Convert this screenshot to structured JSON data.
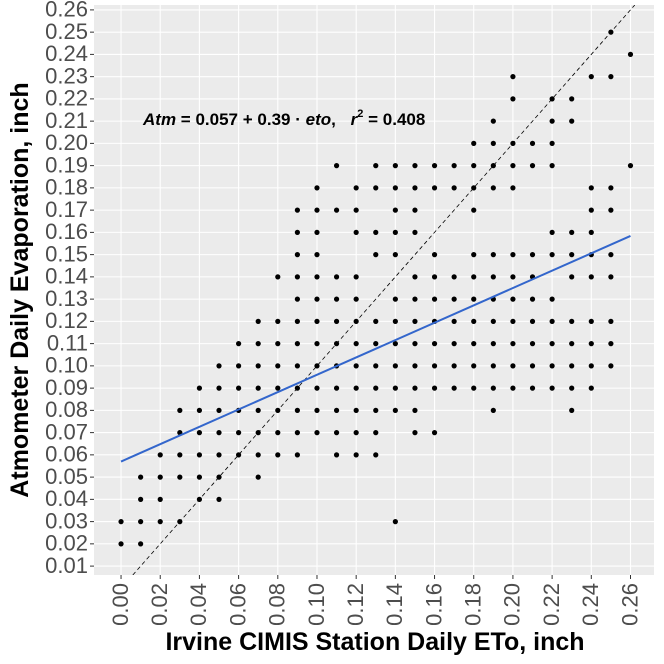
{
  "chart_data": {
    "type": "scatter",
    "xlabel": "Irvine CIMIS Station Daily ETo, inch",
    "ylabel": "Atmometer Daily Evaporation, inch",
    "x": [
      0.0,
      0.0,
      0.01,
      0.01,
      0.01,
      0.01,
      0.02,
      0.02,
      0.02,
      0.02,
      0.03,
      0.03,
      0.03,
      0.03,
      0.03,
      0.04,
      0.04,
      0.04,
      0.04,
      0.04,
      0.04,
      0.05,
      0.05,
      0.05,
      0.05,
      0.05,
      0.05,
      0.05,
      0.06,
      0.06,
      0.06,
      0.06,
      0.06,
      0.06,
      0.07,
      0.07,
      0.07,
      0.07,
      0.07,
      0.07,
      0.07,
      0.07,
      0.08,
      0.08,
      0.08,
      0.08,
      0.08,
      0.08,
      0.08,
      0.08,
      0.09,
      0.09,
      0.09,
      0.09,
      0.09,
      0.09,
      0.09,
      0.09,
      0.09,
      0.09,
      0.09,
      0.09,
      0.1,
      0.1,
      0.1,
      0.1,
      0.1,
      0.1,
      0.1,
      0.1,
      0.1,
      0.1,
      0.1,
      0.1,
      0.11,
      0.11,
      0.11,
      0.11,
      0.11,
      0.11,
      0.11,
      0.11,
      0.11,
      0.11,
      0.11,
      0.12,
      0.12,
      0.12,
      0.12,
      0.12,
      0.12,
      0.12,
      0.12,
      0.12,
      0.12,
      0.12,
      0.12,
      0.13,
      0.13,
      0.13,
      0.13,
      0.13,
      0.13,
      0.13,
      0.13,
      0.13,
      0.13,
      0.13,
      0.14,
      0.14,
      0.14,
      0.14,
      0.14,
      0.14,
      0.14,
      0.14,
      0.14,
      0.14,
      0.14,
      0.14,
      0.15,
      0.15,
      0.15,
      0.15,
      0.15,
      0.15,
      0.15,
      0.15,
      0.15,
      0.15,
      0.15,
      0.15,
      0.16,
      0.16,
      0.16,
      0.16,
      0.16,
      0.16,
      0.16,
      0.16,
      0.16,
      0.16,
      0.17,
      0.17,
      0.17,
      0.17,
      0.17,
      0.17,
      0.17,
      0.17,
      0.18,
      0.18,
      0.18,
      0.18,
      0.18,
      0.18,
      0.18,
      0.18,
      0.18,
      0.18,
      0.18,
      0.19,
      0.19,
      0.19,
      0.19,
      0.19,
      0.19,
      0.19,
      0.19,
      0.19,
      0.19,
      0.19,
      0.19,
      0.2,
      0.2,
      0.2,
      0.2,
      0.2,
      0.2,
      0.2,
      0.2,
      0.2,
      0.2,
      0.2,
      0.2,
      0.21,
      0.21,
      0.21,
      0.21,
      0.21,
      0.21,
      0.21,
      0.21,
      0.21,
      0.22,
      0.22,
      0.22,
      0.22,
      0.22,
      0.22,
      0.22,
      0.22,
      0.22,
      0.22,
      0.22,
      0.23,
      0.23,
      0.23,
      0.23,
      0.23,
      0.23,
      0.23,
      0.23,
      0.23,
      0.23,
      0.24,
      0.24,
      0.24,
      0.24,
      0.24,
      0.24,
      0.24,
      0.24,
      0.24,
      0.24,
      0.25,
      0.25,
      0.25,
      0.25,
      0.25,
      0.25,
      0.25,
      0.25,
      0.25,
      0.26,
      0.26
    ],
    "values": [
      0.02,
      0.03,
      0.02,
      0.03,
      0.04,
      0.05,
      0.03,
      0.04,
      0.05,
      0.06,
      0.03,
      0.05,
      0.06,
      0.07,
      0.08,
      0.04,
      0.05,
      0.06,
      0.07,
      0.08,
      0.09,
      0.04,
      0.05,
      0.06,
      0.07,
      0.08,
      0.09,
      0.1,
      0.06,
      0.07,
      0.08,
      0.09,
      0.1,
      0.11,
      0.05,
      0.06,
      0.07,
      0.08,
      0.09,
      0.1,
      0.11,
      0.12,
      0.06,
      0.07,
      0.08,
      0.09,
      0.1,
      0.11,
      0.12,
      0.14,
      0.06,
      0.07,
      0.08,
      0.09,
      0.1,
      0.11,
      0.12,
      0.13,
      0.14,
      0.15,
      0.16,
      0.17,
      0.07,
      0.08,
      0.09,
      0.1,
      0.11,
      0.12,
      0.13,
      0.14,
      0.15,
      0.16,
      0.17,
      0.18,
      0.06,
      0.07,
      0.08,
      0.09,
      0.1,
      0.11,
      0.12,
      0.13,
      0.14,
      0.17,
      0.19,
      0.06,
      0.07,
      0.08,
      0.09,
      0.1,
      0.11,
      0.12,
      0.13,
      0.14,
      0.16,
      0.17,
      0.18,
      0.06,
      0.07,
      0.08,
      0.09,
      0.1,
      0.11,
      0.12,
      0.15,
      0.16,
      0.18,
      0.19,
      0.03,
      0.08,
      0.09,
      0.1,
      0.11,
      0.12,
      0.13,
      0.15,
      0.16,
      0.17,
      0.18,
      0.19,
      0.07,
      0.08,
      0.09,
      0.1,
      0.11,
      0.12,
      0.13,
      0.14,
      0.16,
      0.17,
      0.18,
      0.19,
      0.07,
      0.09,
      0.1,
      0.11,
      0.12,
      0.13,
      0.14,
      0.15,
      0.18,
      0.19,
      0.09,
      0.1,
      0.11,
      0.12,
      0.13,
      0.14,
      0.18,
      0.19,
      0.09,
      0.1,
      0.11,
      0.12,
      0.13,
      0.14,
      0.15,
      0.17,
      0.18,
      0.19,
      0.2,
      0.08,
      0.09,
      0.1,
      0.11,
      0.12,
      0.13,
      0.14,
      0.15,
      0.18,
      0.19,
      0.2,
      0.21,
      0.09,
      0.1,
      0.11,
      0.12,
      0.13,
      0.14,
      0.15,
      0.18,
      0.19,
      0.2,
      0.22,
      0.23,
      0.09,
      0.1,
      0.11,
      0.12,
      0.13,
      0.14,
      0.15,
      0.19,
      0.2,
      0.09,
      0.1,
      0.11,
      0.12,
      0.13,
      0.15,
      0.16,
      0.19,
      0.2,
      0.21,
      0.22,
      0.08,
      0.09,
      0.1,
      0.11,
      0.12,
      0.14,
      0.15,
      0.16,
      0.21,
      0.22,
      0.09,
      0.1,
      0.11,
      0.12,
      0.14,
      0.15,
      0.16,
      0.17,
      0.18,
      0.23,
      0.1,
      0.11,
      0.12,
      0.14,
      0.15,
      0.17,
      0.18,
      0.23,
      0.25,
      0.19,
      0.24
    ],
    "color": "#000000",
    "fit": {
      "lhs": "Atm",
      "eq": "=",
      "intercept": 0.057,
      "plus": "+",
      "slope": 0.39,
      "dot": "·",
      "var": "eto",
      "comma": ",",
      "r_label": "r",
      "r_exp": "2",
      "eq2": "=",
      "r2": 0.408,
      "color": "#3366cc"
    },
    "identity_line": true,
    "xlim": [
      -0.0138,
      0.272
    ],
    "ylim": [
      0.006,
      0.2622
    ],
    "xticks": [
      {
        "value": 0.0,
        "label": "0.00"
      },
      0.02,
      0.04,
      0.06,
      0.08,
      {
        "value": 0.1,
        "label": "0.10"
      },
      0.12,
      0.14,
      0.16,
      0.18,
      {
        "value": 0.2,
        "label": "0.20"
      },
      0.22,
      0.24,
      0.26
    ],
    "yticks": [
      0.01,
      0.02,
      0.03,
      0.04,
      0.05,
      0.06,
      0.07,
      0.08,
      0.09,
      {
        "value": 0.1,
        "label": "0.10"
      },
      0.11,
      0.12,
      0.13,
      0.14,
      0.15,
      0.16,
      0.17,
      0.18,
      0.19,
      {
        "value": 0.2,
        "label": "0.20"
      },
      0.21,
      0.22,
      0.23,
      0.24,
      0.25,
      0.26
    ],
    "grid": true
  }
}
